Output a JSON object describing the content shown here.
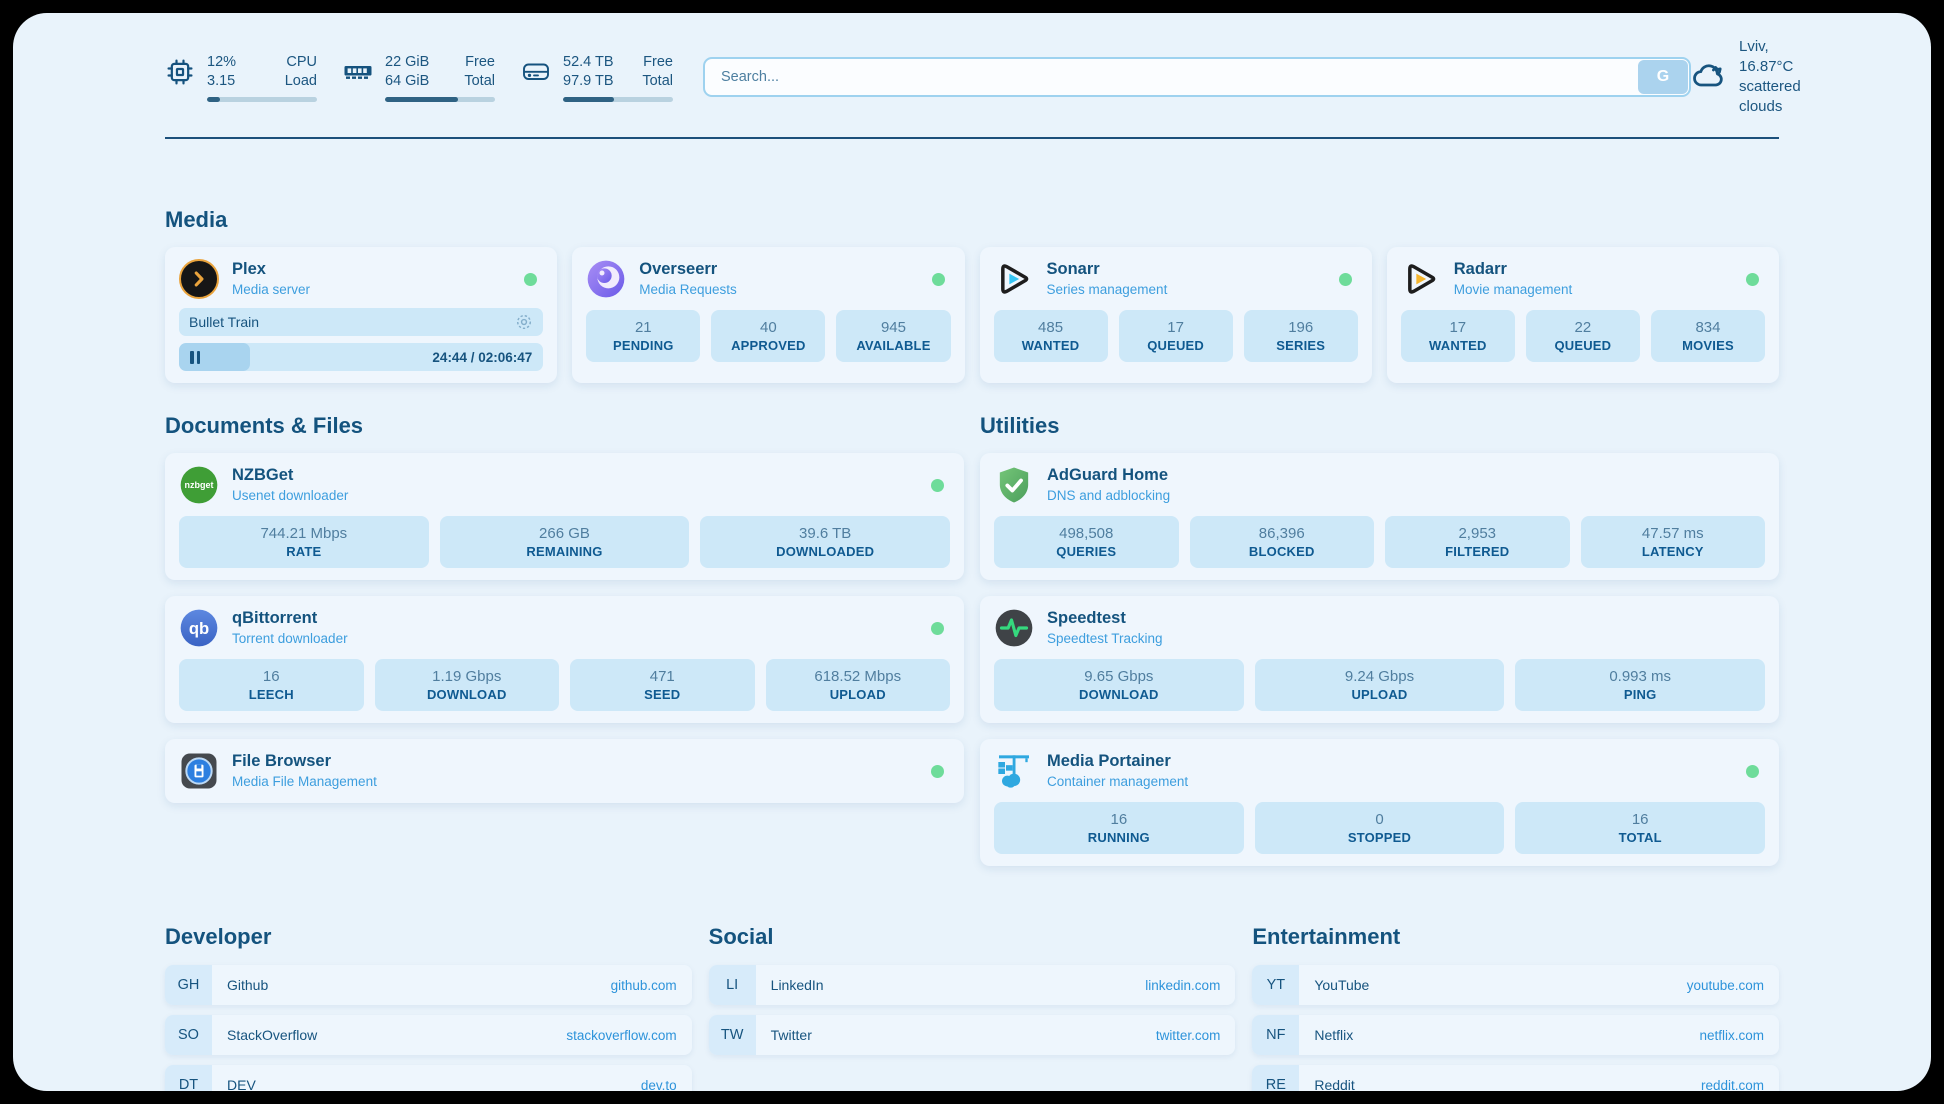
{
  "topbar": {
    "system": [
      {
        "icon": "cpu-icon",
        "value1": "12%",
        "value2": "3.15",
        "label1": "CPU",
        "label2": "Load",
        "progress": 12
      },
      {
        "icon": "ram-icon",
        "value1": "22 GiB",
        "value2": "64 GiB",
        "label1": "Free",
        "label2": "Total",
        "progress": 66
      },
      {
        "icon": "disk-icon",
        "value1": "52.4 TB",
        "value2": "97.9 TB",
        "label1": "Free",
        "label2": "Total",
        "progress": 46
      }
    ],
    "search": {
      "placeholder": "Search...",
      "button": "G"
    },
    "weather": {
      "title": "Lviv, 16.87°C",
      "subtitle": "scattered clouds"
    }
  },
  "sections": {
    "media": {
      "title": "Media",
      "plex": {
        "title": "Plex",
        "subtitle": "Media server",
        "status": "online",
        "now_playing": "Bullet Train",
        "time": "24:44 / 02:06:47",
        "progress_pct": 19.5
      },
      "overseerr": {
        "title": "Overseerr",
        "subtitle": "Media Requests",
        "status": "online",
        "stats": [
          {
            "value": "21",
            "label": "PENDING"
          },
          {
            "value": "40",
            "label": "APPROVED"
          },
          {
            "value": "945",
            "label": "AVAILABLE"
          }
        ]
      },
      "sonarr": {
        "title": "Sonarr",
        "subtitle": "Series management",
        "status": "online",
        "stats": [
          {
            "value": "485",
            "label": "WANTED"
          },
          {
            "value": "17",
            "label": "QUEUED"
          },
          {
            "value": "196",
            "label": "SERIES"
          }
        ]
      },
      "radarr": {
        "title": "Radarr",
        "subtitle": "Movie management",
        "status": "online",
        "stats": [
          {
            "value": "17",
            "label": "WANTED"
          },
          {
            "value": "22",
            "label": "QUEUED"
          },
          {
            "value": "834",
            "label": "MOVIES"
          }
        ]
      }
    },
    "documents": {
      "title": "Documents & Files",
      "nzbget": {
        "title": "NZBGet",
        "subtitle": "Usenet downloader",
        "status": "online",
        "stats": [
          {
            "value": "744.21 Mbps",
            "label": "RATE"
          },
          {
            "value": "266 GB",
            "label": "REMAINING"
          },
          {
            "value": "39.6 TB",
            "label": "DOWNLOADED"
          }
        ]
      },
      "qbittorrent": {
        "title": "qBittorrent",
        "subtitle": "Torrent downloader",
        "status": "online",
        "stats": [
          {
            "value": "16",
            "label": "LEECH"
          },
          {
            "value": "1.19 Gbps",
            "label": "DOWNLOAD"
          },
          {
            "value": "471",
            "label": "SEED"
          },
          {
            "value": "618.52 Mbps",
            "label": "UPLOAD"
          }
        ]
      },
      "filebrowser": {
        "title": "File Browser",
        "subtitle": "Media File Management",
        "status": "online"
      }
    },
    "utilities": {
      "title": "Utilities",
      "adguard": {
        "title": "AdGuard Home",
        "subtitle": "DNS and adblocking",
        "stats": [
          {
            "value": "498,508",
            "label": "QUERIES"
          },
          {
            "value": "86,396",
            "label": "BLOCKED"
          },
          {
            "value": "2,953",
            "label": "FILTERED"
          },
          {
            "value": "47.57 ms",
            "label": "LATENCY"
          }
        ]
      },
      "speedtest": {
        "title": "Speedtest",
        "subtitle": "Speedtest Tracking",
        "stats": [
          {
            "value": "9.65 Gbps",
            "label": "DOWNLOAD"
          },
          {
            "value": "9.24 Gbps",
            "label": "UPLOAD"
          },
          {
            "value": "0.993 ms",
            "label": "PING"
          }
        ]
      },
      "portainer": {
        "title": "Media Portainer",
        "subtitle": "Container management",
        "status": "online",
        "stats": [
          {
            "value": "16",
            "label": "RUNNING"
          },
          {
            "value": "0",
            "label": "STOPPED"
          },
          {
            "value": "16",
            "label": "TOTAL"
          }
        ]
      }
    }
  },
  "bookmarks": [
    {
      "title": "Developer",
      "links": [
        {
          "abbr": "GH",
          "label": "Github",
          "url": "github.com"
        },
        {
          "abbr": "SO",
          "label": "StackOverflow",
          "url": "stackoverflow.com"
        },
        {
          "abbr": "DT",
          "label": "DEV",
          "url": "dev.to"
        }
      ]
    },
    {
      "title": "Social",
      "links": [
        {
          "abbr": "LI",
          "label": "LinkedIn",
          "url": "linkedin.com"
        },
        {
          "abbr": "TW",
          "label": "Twitter",
          "url": "twitter.com"
        }
      ]
    },
    {
      "title": "Entertainment",
      "links": [
        {
          "abbr": "YT",
          "label": "YouTube",
          "url": "youtube.com"
        },
        {
          "abbr": "NF",
          "label": "Netflix",
          "url": "netflix.com"
        },
        {
          "abbr": "RE",
          "label": "Reddit",
          "url": "reddit.com"
        }
      ]
    }
  ],
  "icons": {
    "nzbget_logo_text": "nzbget",
    "qbittorrent_logo_text": "qb"
  },
  "colors": {
    "page_bg": "#e9f3fb",
    "card_bg": "#eff6fd",
    "tile_bg": "#cde8f8",
    "navy_text": "#14537e",
    "subtitle_blue": "#3d9ede",
    "link_blue": "#2d93da",
    "status_green": "#6edc9a",
    "progress_fill": "#2f6283",
    "search_border": "#9ed2ef",
    "search_button_bg": "#abd3ee"
  }
}
